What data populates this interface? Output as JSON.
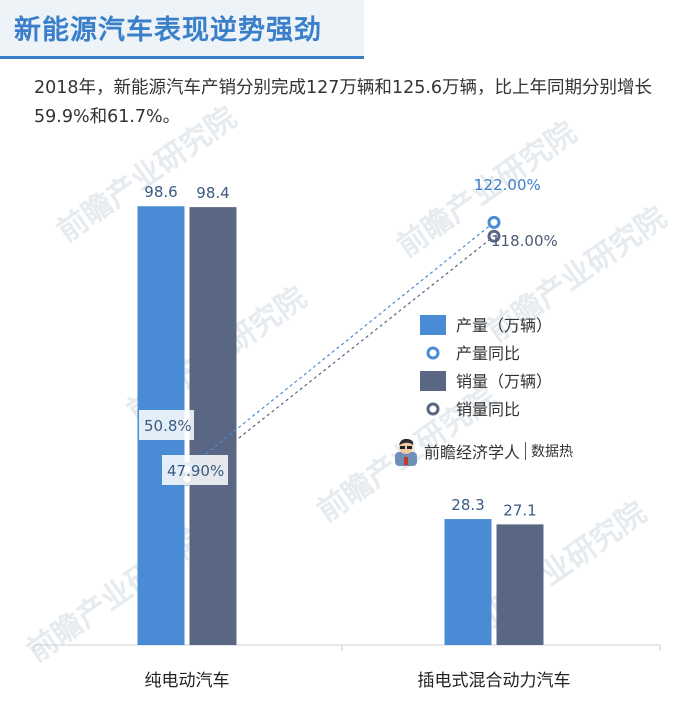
{
  "header": {
    "title": "新能源汽车表现逆势强劲"
  },
  "description": "2018年，新能源汽车产销分别完成127万辆和125.6万辆，比上年同期分别增长59.9%和61.7%。",
  "brand": {
    "name": "前瞻经济学人",
    "sub": "数据热",
    "watermark": "前瞻产业研究院"
  },
  "colors": {
    "production": "#4a8bd6",
    "sales": "#5a6784",
    "production_rate": "#4a8bd6",
    "sales_rate": "#5a6784"
  },
  "chart_data": {
    "type": "bar",
    "categories": [
      "纯电动汽车",
      "插电式混合动力汽车"
    ],
    "series": [
      {
        "name": "产量（万辆）",
        "kind": "bar",
        "values": [
          98.6,
          28.3
        ],
        "labels": [
          "98.6",
          "28.3"
        ]
      },
      {
        "name": "销量（万辆）",
        "kind": "bar",
        "values": [
          98.4,
          27.1
        ],
        "labels": [
          "98.4",
          "27.1"
        ]
      },
      {
        "name": "产量同比",
        "kind": "line",
        "unit": "%",
        "values": [
          50.8,
          122.0
        ],
        "labels": [
          "50.8%",
          "122.00%"
        ]
      },
      {
        "name": "销量同比",
        "kind": "line",
        "unit": "%",
        "values": [
          47.9,
          118.0
        ],
        "labels": [
          "47.90%",
          "118.00%"
        ]
      }
    ],
    "bar_ylim": [
      0,
      100
    ],
    "line_ylim": [
      0,
      140
    ],
    "grid": false,
    "legend_position": "right"
  }
}
